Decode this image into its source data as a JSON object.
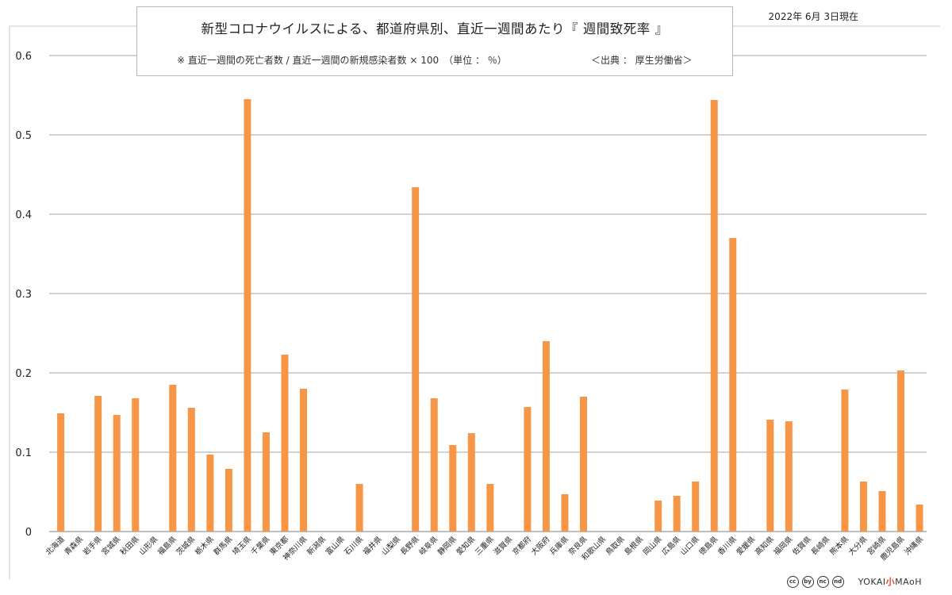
{
  "header": {
    "title": "新型コロナウイルスによる、都道府県別、直近一週間あたり『 週間致死率 』",
    "subtitle": "※ 直近一週間の死亡者数 / 直近一週間の新規感染者数 × 100　（単位 ： ％）",
    "source": "＜出典 ： 厚生労働省＞",
    "date": "2022年 6月 3日現在"
  },
  "footer": {
    "license_badges": [
      "cc",
      "by",
      "nc",
      "nd"
    ],
    "brand_left": "YOKAI",
    "brand_mid": "小",
    "brand_right": "MAoH"
  },
  "chart_data": {
    "type": "bar",
    "ylim": [
      0,
      0.6
    ],
    "yticks": [
      "0",
      "0.1",
      "0.2",
      "0.3",
      "0.4",
      "0.5",
      "0.6"
    ],
    "grid": true,
    "bar_color": "#f79646",
    "categories": [
      "北海道",
      "青森県",
      "岩手県",
      "宮城県",
      "秋田県",
      "山形県",
      "福島県",
      "茨城県",
      "栃木県",
      "群馬県",
      "埼玉県",
      "千葉県",
      "東京都",
      "神奈川県",
      "新潟県",
      "富山県",
      "石川県",
      "福井県",
      "山梨県",
      "長野県",
      "岐阜県",
      "静岡県",
      "愛知県",
      "三重県",
      "滋賀県",
      "京都府",
      "大阪府",
      "兵庫県",
      "奈良県",
      "和歌山県",
      "鳥取県",
      "島根県",
      "岡山県",
      "広島県",
      "山口県",
      "徳島県",
      "香川県",
      "愛媛県",
      "高知県",
      "福岡県",
      "佐賀県",
      "長崎県",
      "熊本県",
      "大分県",
      "宮崎県",
      "鹿児島県",
      "沖縄県"
    ],
    "values": [
      0.149,
      0,
      0.171,
      0.147,
      0.168,
      0,
      0.185,
      0.156,
      0.097,
      0.079,
      0.545,
      0.125,
      0.223,
      0.18,
      0,
      0,
      0.06,
      0,
      0,
      0.434,
      0.168,
      0.109,
      0.124,
      0.06,
      0,
      0.157,
      0.24,
      0.047,
      0.17,
      0,
      0,
      0,
      0.039,
      0.045,
      0.063,
      0.544,
      0.37,
      0,
      0.141,
      0.139,
      0,
      0,
      0.179,
      0.063,
      0.051,
      0.203,
      0.034
    ]
  }
}
